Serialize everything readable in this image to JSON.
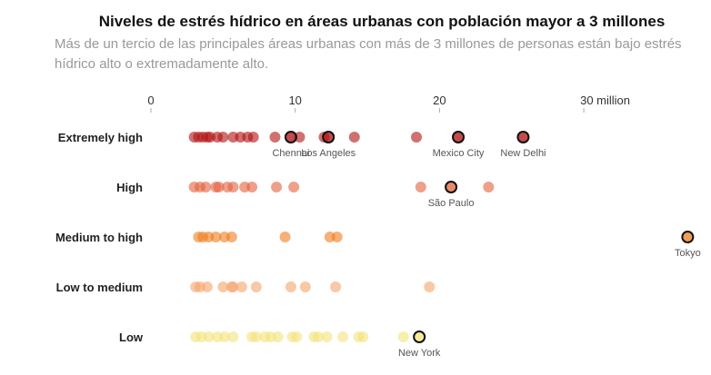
{
  "chart_data": {
    "type": "scatter",
    "title": "Niveles de estrés hídrico en áreas urbanas con población mayor a 3 millones",
    "subtitle": "Más de un tercio de las principales áreas urbanas con más de 3 millones de personas están bajo estrés hídrico alto o extremadamente alto.",
    "xlim": [
      0,
      37
    ],
    "x_ticks": [
      {
        "value": 0,
        "label": "0"
      },
      {
        "value": 10,
        "label": "10"
      },
      {
        "value": 20,
        "label": "20"
      },
      {
        "value": 30,
        "label": "30 million"
      }
    ],
    "grid": false,
    "categories": [
      {
        "name": "Extremely high",
        "color": "#b01010",
        "values": [
          3.0,
          3.3,
          3.6,
          3.9,
          4.1,
          4.6,
          5.0,
          5.7,
          6.2,
          6.7,
          7.1,
          8.6,
          10.3,
          12.0,
          14.1,
          18.4
        ],
        "highlighted": [
          {
            "city": "Chennai",
            "value": 9.7
          },
          {
            "city": "Los Angeles",
            "value": 12.3
          },
          {
            "city": "Mexico City",
            "value": 21.3
          },
          {
            "city": "New Delhi",
            "value": 25.8
          }
        ]
      },
      {
        "name": "High",
        "color": "#e2603e",
        "values": [
          3.0,
          3.4,
          3.8,
          4.5,
          4.7,
          5.3,
          5.7,
          6.5,
          7.0,
          8.7,
          9.9,
          18.7,
          23.4
        ],
        "highlighted": [
          {
            "city": "São Paulo",
            "value": 20.8
          }
        ]
      },
      {
        "name": "Medium to high",
        "color": "#ee7d1e",
        "values": [
          3.3,
          3.6,
          4.0,
          4.5,
          5.1,
          5.6,
          9.3,
          12.4,
          12.9
        ],
        "highlighted": [
          {
            "city": "Tokyo",
            "value": 37.2
          }
        ]
      },
      {
        "name": "Low to medium",
        "color": "#f5a46a",
        "values": [
          3.1,
          3.4,
          3.9,
          5.0,
          5.6,
          5.7,
          6.3,
          7.3,
          9.7,
          10.7,
          12.8,
          19.3
        ],
        "highlighted": []
      },
      {
        "name": "Low",
        "color": "#f4e27a",
        "values": [
          3.1,
          3.5,
          4.0,
          4.6,
          5.1,
          5.7,
          7.0,
          7.3,
          7.9,
          8.3,
          8.8,
          9.8,
          10.1,
          11.3,
          11.6,
          12.2,
          13.3,
          14.4,
          14.7,
          17.5
        ],
        "highlighted": [
          {
            "city": "New York",
            "value": 18.6
          }
        ]
      }
    ]
  }
}
